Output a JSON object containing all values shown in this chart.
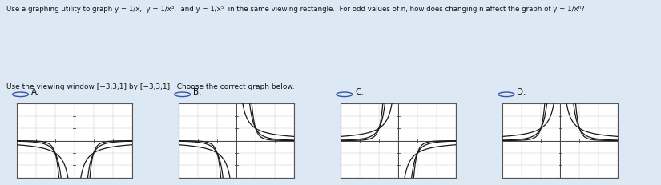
{
  "title_line": "Use a graphing utility to graph y = 1/x,  y = 1/x³,  and y = 1/x⁵  in the same viewing rectangle.  For odd values of n, how does changing n affect the graph of y = 1/xⁿ?",
  "question_line": "Use the viewing window [−3,3,1] by [−3,3,1].  Choose the correct graph below.",
  "labels": [
    "A.",
    "B.",
    "C.",
    "D."
  ],
  "xlim": [
    -3,
    3
  ],
  "ylim": [
    -3,
    3
  ],
  "bg_color": "#dce8f4",
  "graph_bg": "#ffffff",
  "line_color": "#1a1a1a",
  "axis_color": "#444444",
  "border_color": "#555555",
  "grid_color": "#cccccc",
  "radio_color": "#3355aa",
  "label_color": "#111111",
  "graph_types": [
    "A",
    "B",
    "C",
    "D"
  ]
}
